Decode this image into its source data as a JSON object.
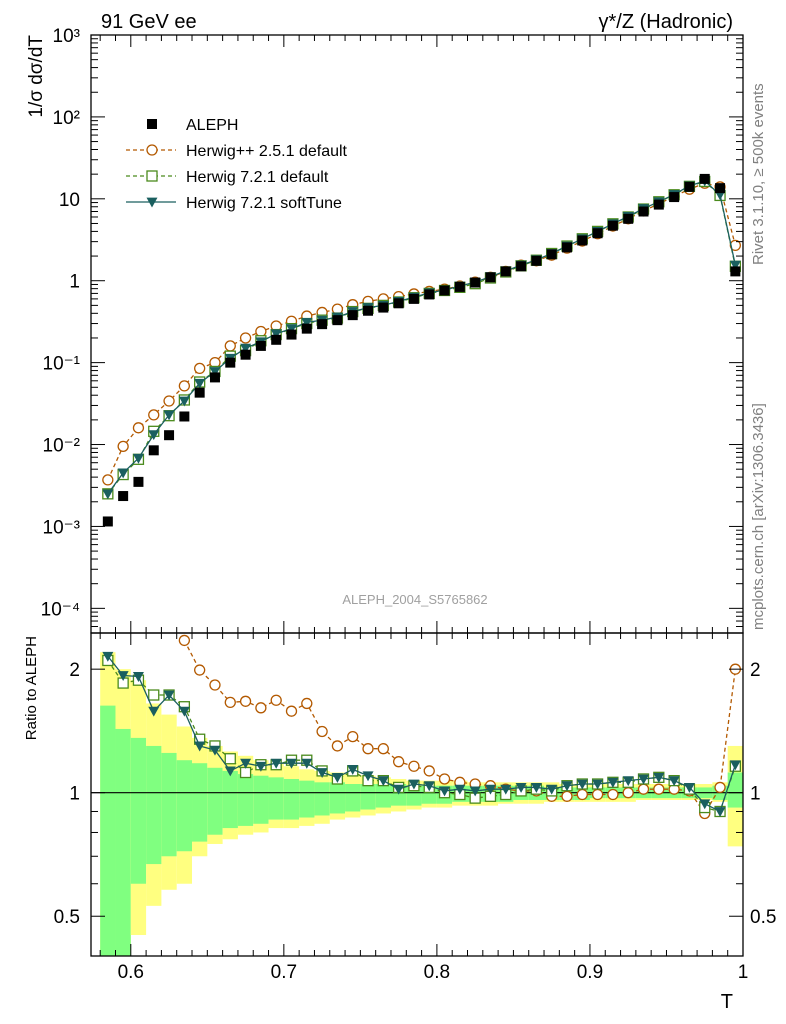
{
  "header": {
    "energy_label": "91 GeV ee",
    "process_label": "γ*/Z (Hadronic)"
  },
  "side_labels": {
    "rivet": "Rivet 3.1.10, ≥ 500k events",
    "mcplots": "mcplots.cern.ch [arXiv:1306.3436]"
  },
  "watermark": "ALEPH_2004_S5765862",
  "chart_data": [
    {
      "type": "scatter",
      "panel": "main",
      "ylabel": "1/σ  dσ/dT",
      "xlabel": "",
      "yscale": "log",
      "ylim": [
        5e-05,
        1000
      ],
      "xlim": [
        0.574,
        1.0
      ],
      "y_ticks": [
        "10⁻⁴",
        "10⁻³",
        "10⁻²",
        "10⁻¹",
        "1",
        "10",
        "10²",
        "10³"
      ],
      "legend_position": "top-left",
      "x": [
        0.585,
        0.595,
        0.605,
        0.615,
        0.625,
        0.635,
        0.645,
        0.655,
        0.665,
        0.675,
        0.685,
        0.695,
        0.705,
        0.715,
        0.725,
        0.735,
        0.745,
        0.755,
        0.765,
        0.775,
        0.785,
        0.795,
        0.805,
        0.815,
        0.825,
        0.835,
        0.845,
        0.855,
        0.865,
        0.875,
        0.885,
        0.895,
        0.905,
        0.915,
        0.925,
        0.935,
        0.945,
        0.955,
        0.965,
        0.975,
        0.985,
        0.995
      ],
      "series": [
        {
          "name": "ALEPH",
          "color": "#000000",
          "marker": "filled-square",
          "values": [
            0.00115,
            0.00235,
            0.0035,
            0.0085,
            0.013,
            0.022,
            0.043,
            0.066,
            0.1,
            0.125,
            0.16,
            0.19,
            0.22,
            0.26,
            0.295,
            0.33,
            0.38,
            0.43,
            0.47,
            0.53,
            0.6,
            0.68,
            0.76,
            0.84,
            0.95,
            1.1,
            1.3,
            1.5,
            1.75,
            2.1,
            2.55,
            3.1,
            3.8,
            4.7,
            5.7,
            7,
            8.5,
            10.5,
            14,
            17.5,
            13.5,
            1.3
          ]
        },
        {
          "name": "Herwig++ 2.5.1 default",
          "color": "#b35900",
          "marker": "open-circle",
          "values": [
            0.0037,
            0.0095,
            0.016,
            0.023,
            0.034,
            0.052,
            0.085,
            0.1,
            0.16,
            0.2,
            0.24,
            0.28,
            0.32,
            0.37,
            0.41,
            0.45,
            0.51,
            0.56,
            0.6,
            0.64,
            0.69,
            0.74,
            0.79,
            0.86,
            0.96,
            1.1,
            1.3,
            1.55,
            1.75,
            2.05,
            2.5,
            3.05,
            3.75,
            4.65,
            5.7,
            7.1,
            8.7,
            10.7,
            13.1,
            15.5,
            14,
            2.7
          ]
        },
        {
          "name": "Herwig 7.2.1 default",
          "color": "#4a8a1c",
          "marker": "open-square",
          "values": [
            0.0025,
            0.0043,
            0.0066,
            0.0145,
            0.0225,
            0.035,
            0.058,
            0.078,
            0.12,
            0.14,
            0.185,
            0.22,
            0.26,
            0.3,
            0.33,
            0.35,
            0.42,
            0.46,
            0.5,
            0.55,
            0.62,
            0.7,
            0.76,
            0.83,
            0.92,
            1.08,
            1.28,
            1.52,
            1.78,
            2.15,
            2.65,
            3.25,
            4.0,
            4.95,
            6.0,
            7.5,
            9.2,
            11.2,
            14.2,
            16.3,
            11.0,
            1.5
          ]
        },
        {
          "name": "Herwig 7.2.1 softTune",
          "color": "#1a5f5f",
          "marker": "filled-triangle-down",
          "values": [
            0.0025,
            0.0045,
            0.0068,
            0.0132,
            0.023,
            0.034,
            0.056,
            0.078,
            0.113,
            0.15,
            0.18,
            0.225,
            0.26,
            0.31,
            0.33,
            0.36,
            0.42,
            0.47,
            0.5,
            0.56,
            0.63,
            0.71,
            0.77,
            0.86,
            0.96,
            1.12,
            1.32,
            1.55,
            1.8,
            2.15,
            2.65,
            3.25,
            4.0,
            4.95,
            6.1,
            7.6,
            9.2,
            11.3,
            14.4,
            16.5,
            11.2,
            1.55
          ]
        }
      ]
    },
    {
      "type": "line",
      "panel": "ratio",
      "ylabel": "Ratio to ALEPH",
      "xlabel": "T",
      "yscale": "log",
      "ylim": [
        0.4,
        2.45
      ],
      "xlim": [
        0.574,
        1.0
      ],
      "x_ticks": [
        "0.6",
        "0.7",
        "0.8",
        "0.9",
        "1"
      ],
      "y_ticks": [
        "0.5",
        "1",
        "2"
      ],
      "x": [
        0.585,
        0.595,
        0.605,
        0.615,
        0.625,
        0.635,
        0.645,
        0.655,
        0.665,
        0.675,
        0.685,
        0.695,
        0.705,
        0.715,
        0.725,
        0.735,
        0.745,
        0.755,
        0.765,
        0.775,
        0.785,
        0.795,
        0.805,
        0.815,
        0.825,
        0.835,
        0.845,
        0.855,
        0.865,
        0.875,
        0.885,
        0.895,
        0.905,
        0.915,
        0.925,
        0.935,
        0.945,
        0.955,
        0.965,
        0.975,
        0.985,
        0.995
      ],
      "band_green": {
        "lo": [
          0.3,
          0.3,
          0.6,
          0.67,
          0.7,
          0.72,
          0.76,
          0.79,
          0.82,
          0.83,
          0.84,
          0.86,
          0.86,
          0.87,
          0.88,
          0.89,
          0.9,
          0.91,
          0.92,
          0.93,
          0.93,
          0.94,
          0.94,
          0.95,
          0.95,
          0.95,
          0.95,
          0.96,
          0.96,
          0.96,
          0.96,
          0.96,
          0.97,
          0.97,
          0.97,
          0.97,
          0.97,
          0.97,
          0.97,
          0.97,
          0.96,
          0.92
        ],
        "hi": [
          1.63,
          1.43,
          1.36,
          1.3,
          1.25,
          1.2,
          1.18,
          1.15,
          1.13,
          1.11,
          1.1,
          1.09,
          1.08,
          1.07,
          1.06,
          1.06,
          1.05,
          1.05,
          1.05,
          1.05,
          1.04,
          1.04,
          1.04,
          1.04,
          1.04,
          1.04,
          1.04,
          1.04,
          1.04,
          1.03,
          1.03,
          1.03,
          1.03,
          1.03,
          1.03,
          1.03,
          1.03,
          1.03,
          1.03,
          1.03,
          1.04,
          1.12
        ]
      },
      "band_yellow": {
        "lo": [
          0.3,
          0.3,
          0.45,
          0.53,
          0.58,
          0.6,
          0.7,
          0.75,
          0.77,
          0.79,
          0.8,
          0.82,
          0.82,
          0.83,
          0.84,
          0.86,
          0.87,
          0.88,
          0.89,
          0.9,
          0.91,
          0.92,
          0.92,
          0.93,
          0.93,
          0.93,
          0.94,
          0.94,
          0.94,
          0.95,
          0.95,
          0.95,
          0.95,
          0.95,
          0.95,
          0.96,
          0.96,
          0.96,
          0.96,
          0.96,
          0.95,
          0.74
        ],
        "hi": [
          2.2,
          2.0,
          1.88,
          1.65,
          1.55,
          1.45,
          1.36,
          1.3,
          1.26,
          1.23,
          1.2,
          1.18,
          1.16,
          1.14,
          1.13,
          1.12,
          1.11,
          1.1,
          1.09,
          1.08,
          1.07,
          1.07,
          1.07,
          1.07,
          1.06,
          1.06,
          1.06,
          1.06,
          1.06,
          1.06,
          1.05,
          1.05,
          1.05,
          1.05,
          1.05,
          1.05,
          1.05,
          1.05,
          1.05,
          1.05,
          1.06,
          1.3
        ]
      },
      "series": [
        {
          "name": "Herwig++ 2.5.1 default",
          "color": "#b35900",
          "marker": "open-circle",
          "values": [
            null,
            null,
            null,
            null,
            null,
            2.35,
            1.99,
            1.83,
            1.66,
            1.67,
            1.61,
            1.68,
            1.58,
            1.65,
            1.41,
            1.3,
            1.37,
            1.28,
            1.28,
            1.19,
            1.16,
            1.13,
            1.08,
            1.06,
            1.05,
            1.04,
            1.02,
            1.01,
            1.01,
            0.98,
            0.98,
            0.99,
            0.99,
            0.99,
            1.0,
            1.02,
            1.02,
            1.02,
            1.01,
            0.89,
            1.03,
            2.0
          ]
        },
        {
          "name": "Herwig 7.2.1 default",
          "color": "#4a8a1c",
          "marker": "open-square",
          "values": [
            2.1,
            1.85,
            1.88,
            1.73,
            1.73,
            1.62,
            1.35,
            1.3,
            1.21,
            1.12,
            1.17,
            1.17,
            1.2,
            1.2,
            1.13,
            1.08,
            1.13,
            1.07,
            1.07,
            1.03,
            1.04,
            1.03,
            1.0,
            0.99,
            0.97,
            0.98,
            0.99,
            1.01,
            1.02,
            1.01,
            1.04,
            1.05,
            1.05,
            1.06,
            1.06,
            1.08,
            1.09,
            1.07,
            1.02,
            0.92,
            0.9,
            1.16
          ]
        },
        {
          "name": "Herwig 7.2.1 softTune",
          "color": "#1a5f5f",
          "marker": "filled-triangle-down",
          "values": [
            2.15,
            1.93,
            1.92,
            1.58,
            1.73,
            1.58,
            1.3,
            1.27,
            1.13,
            1.18,
            1.16,
            1.18,
            1.18,
            1.18,
            1.12,
            1.09,
            1.14,
            1.1,
            1.07,
            1.02,
            1.05,
            1.04,
            1.01,
            1.02,
            1.01,
            1.02,
            1.02,
            1.03,
            1.03,
            1.02,
            1.04,
            1.05,
            1.05,
            1.06,
            1.07,
            1.08,
            1.09,
            1.07,
            1.03,
            0.94,
            0.9,
            1.17
          ]
        }
      ]
    }
  ]
}
